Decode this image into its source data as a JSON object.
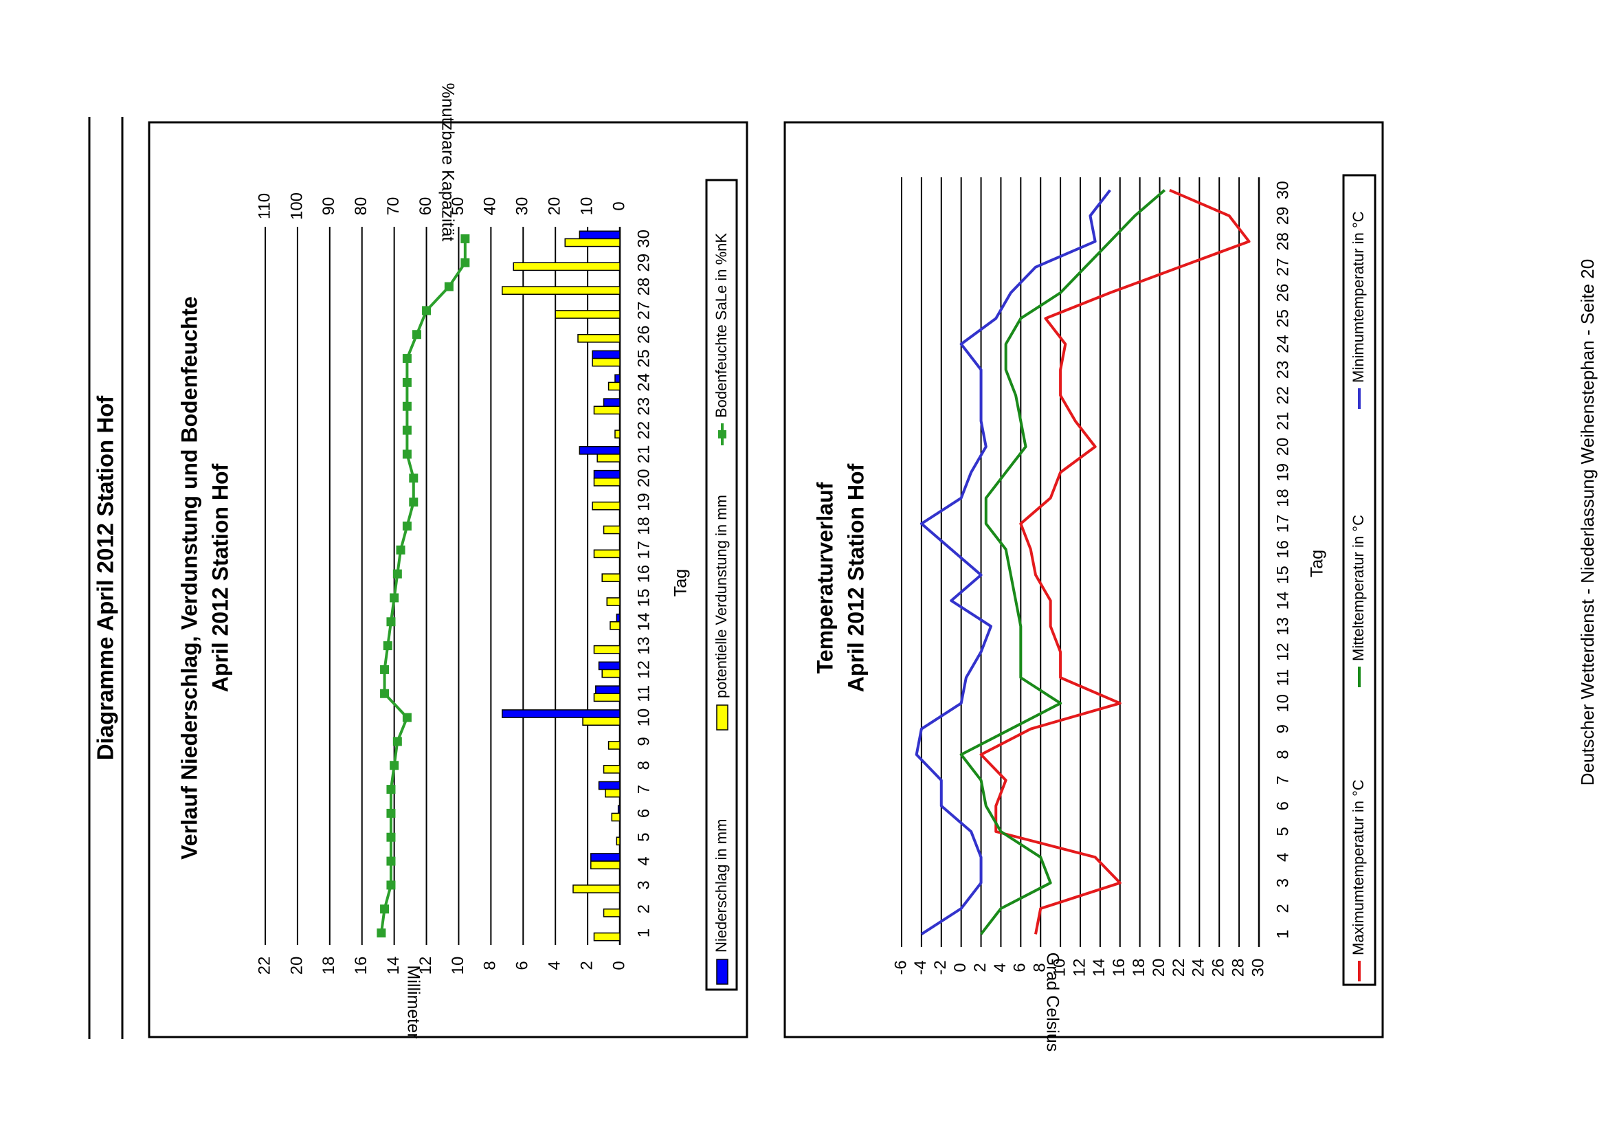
{
  "page": {
    "heading": "Diagramme April 2012 Station Hof",
    "footer": "Deutscher Wetterdienst - Niederlassung Weihenstephan - Seite 20"
  },
  "colors": {
    "niederschlag": "#0000ff",
    "verdunstung": "#ffff00",
    "bodenfeuchte": "#2ca02c",
    "tmax": "#e41a1c",
    "tmittel": "#1a8a1a",
    "tmin": "#3333cc"
  },
  "chart_data": [
    {
      "type": "bar",
      "title_line1": "Verlauf Niederschlag, Verdunstung und Bodenfeuchte",
      "title_line2": "April 2012 Station Hof",
      "xlabel": "Tag",
      "ylabel_left": "Millimeter",
      "ylabel_right": "%nutzbare Kapazität",
      "ylim_left": [
        0,
        22
      ],
      "yticks_left": [
        0,
        2,
        4,
        6,
        8,
        10,
        12,
        14,
        16,
        18,
        20,
        22
      ],
      "ylim_right": [
        0,
        110
      ],
      "yticks_right": [
        0,
        10,
        20,
        30,
        40,
        50,
        60,
        70,
        80,
        90,
        100,
        110
      ],
      "grid": true,
      "legend_position": "bottom",
      "categories": [
        "1",
        "2",
        "3",
        "4",
        "5",
        "6",
        "7",
        "8",
        "9",
        "10",
        "11",
        "12",
        "13",
        "14",
        "15",
        "16",
        "17",
        "18",
        "19",
        "20",
        "21",
        "22",
        "23",
        "24",
        "25",
        "26",
        "27",
        "28",
        "29",
        "30"
      ],
      "series": [
        {
          "name": "Niederschlag in mm",
          "kind": "bar",
          "axis": "left",
          "values": [
            0,
            0,
            0,
            1.8,
            0,
            0.1,
            1.3,
            0,
            0,
            7.3,
            1.5,
            1.3,
            0,
            0.2,
            0,
            0,
            0,
            0,
            0,
            1.6,
            2.5,
            0,
            1.0,
            0.3,
            1.7,
            0,
            0,
            0,
            0,
            2.5
          ]
        },
        {
          "name": "potentielle Verdunstung in mm",
          "kind": "bar",
          "axis": "left",
          "values": [
            1.6,
            1.0,
            2.9,
            1.8,
            0.2,
            0.5,
            0.9,
            1.0,
            0.7,
            2.3,
            1.6,
            1.1,
            1.6,
            0.6,
            0.8,
            1.1,
            1.6,
            1.0,
            1.7,
            1.6,
            1.4,
            0.3,
            1.6,
            0.7,
            1.7,
            2.6,
            4.0,
            7.3,
            6.6,
            3.4
          ]
        },
        {
          "name": "Bodenfeuchte SaLe in %nK",
          "kind": "line",
          "axis": "right",
          "values": [
            74,
            73,
            71,
            71,
            71,
            71,
            71,
            70,
            69,
            66,
            73,
            73,
            72,
            71,
            70,
            69,
            68,
            66,
            64,
            64,
            66,
            66,
            66,
            66,
            66,
            63,
            60,
            53,
            48,
            48
          ]
        }
      ]
    },
    {
      "type": "line",
      "title_line1": "Temperaturverlauf",
      "title_line2": "April 2012 Station Hof",
      "xlabel": "Tag",
      "ylabel": "Grad Celsius",
      "ylim": [
        -6,
        30
      ],
      "yticks": [
        -6,
        -4,
        -2,
        0,
        2,
        4,
        6,
        8,
        10,
        12,
        14,
        16,
        18,
        20,
        22,
        24,
        26,
        28,
        30
      ],
      "grid": true,
      "legend_position": "bottom",
      "categories": [
        "1",
        "2",
        "3",
        "4",
        "5",
        "6",
        "7",
        "8",
        "9",
        "10",
        "11",
        "12",
        "13",
        "14",
        "15",
        "16",
        "17",
        "18",
        "19",
        "20",
        "21",
        "22",
        "23",
        "24",
        "25",
        "26",
        "27",
        "28",
        "29",
        "30"
      ],
      "series": [
        {
          "name": "Maximumtemperatur in °C",
          "values": [
            7.5,
            8,
            16,
            13.5,
            3.5,
            3.5,
            4.5,
            2,
            7,
            16,
            10,
            10,
            9,
            9,
            7.5,
            7,
            6,
            9,
            10,
            13.5,
            11.5,
            10,
            10,
            10.5,
            8.5,
            15,
            22,
            29,
            27,
            21
          ]
        },
        {
          "name": "Mitteltemperatur in °C",
          "values": [
            2,
            4,
            9,
            8,
            4,
            2.5,
            2,
            0,
            5,
            10,
            6,
            6,
            6,
            5.5,
            5,
            4.5,
            2.5,
            2.5,
            4.5,
            6.5,
            6,
            5.5,
            4.5,
            4.5,
            6,
            10,
            12.5,
            15,
            17.5,
            20.5
          ]
        },
        {
          "name": "Minimumtemperatur in °C",
          "values": [
            -4,
            0,
            2,
            2,
            1,
            -2,
            -2,
            -4.5,
            -4,
            0,
            0.5,
            2,
            3,
            -1,
            2,
            -1,
            -4,
            0,
            1,
            2.5,
            2,
            2,
            2,
            0,
            3.5,
            5,
            7.5,
            13.5,
            13,
            15
          ]
        }
      ]
    }
  ]
}
